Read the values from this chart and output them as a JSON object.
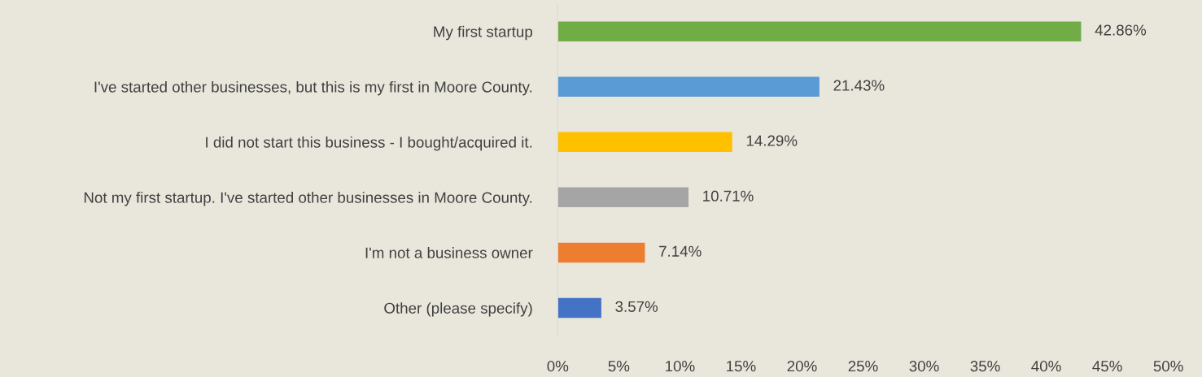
{
  "chart_data": {
    "type": "bar",
    "orientation": "horizontal",
    "categories": [
      "My first startup",
      "I've started other businesses, but this is my first in Moore County.",
      "I did not start this business - I bought/acquired it.",
      "Not my first startup. I've started other businesses in Moore County.",
      "I'm not a business owner",
      "Other (please specify)"
    ],
    "values": [
      42.86,
      21.43,
      14.29,
      10.71,
      7.14,
      3.57
    ],
    "colors": [
      "#70ad47",
      "#5b9bd5",
      "#ffc000",
      "#a5a5a5",
      "#ed7d31",
      "#4472c4"
    ],
    "value_labels": [
      "42.86%",
      "21.43%",
      "14.29%",
      "10.71%",
      "7.14%",
      "3.57%"
    ],
    "xlim": [
      0,
      50
    ],
    "xticks": [
      {
        "value": 0,
        "label": "0%"
      },
      {
        "value": 5,
        "label": "5%"
      },
      {
        "value": 10,
        "label": "10%"
      },
      {
        "value": 15,
        "label": "15%"
      },
      {
        "value": 20,
        "label": "20%"
      },
      {
        "value": 25,
        "label": "25%"
      },
      {
        "value": 30,
        "label": "30%"
      },
      {
        "value": 35,
        "label": "35%"
      },
      {
        "value": 40,
        "label": "40%"
      },
      {
        "value": 45,
        "label": "45%"
      },
      {
        "value": 50,
        "label": "50%"
      }
    ],
    "grid": false,
    "legend": false
  }
}
